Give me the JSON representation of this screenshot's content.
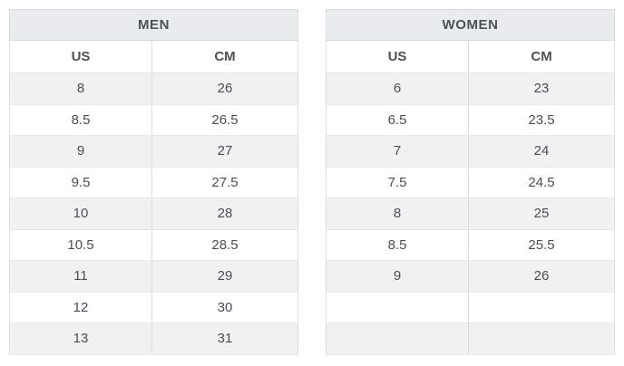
{
  "colors": {
    "page_bg": "#ffffff",
    "header_bg": "#e8eced",
    "header_border": "#d5dbde",
    "outer_border": "#dcdfe1",
    "row_border": "#e8e8e8",
    "col_sep": "#dcdcdc",
    "row_alt_bg": "#f1f1f2",
    "text": "#4a4e53",
    "title_text": "#4c5156"
  },
  "tables": [
    {
      "title": "MEN",
      "columns": [
        "US",
        "CM"
      ],
      "rows": [
        [
          "8",
          "26"
        ],
        [
          "8.5",
          "26.5"
        ],
        [
          "9",
          "27"
        ],
        [
          "9.5",
          "27.5"
        ],
        [
          "10",
          "28"
        ],
        [
          "10.5",
          "28.5"
        ],
        [
          "11",
          "29"
        ],
        [
          "12",
          "30"
        ],
        [
          "13",
          "31"
        ]
      ]
    },
    {
      "title": "WOMEN",
      "columns": [
        "US",
        "CM"
      ],
      "rows": [
        [
          "6",
          "23"
        ],
        [
          "6.5",
          "23.5"
        ],
        [
          "7",
          "24"
        ],
        [
          "7.5",
          "24.5"
        ],
        [
          "8",
          "25"
        ],
        [
          "8.5",
          "25.5"
        ],
        [
          "9",
          "26"
        ],
        [
          "",
          ""
        ],
        [
          "",
          ""
        ]
      ]
    }
  ]
}
